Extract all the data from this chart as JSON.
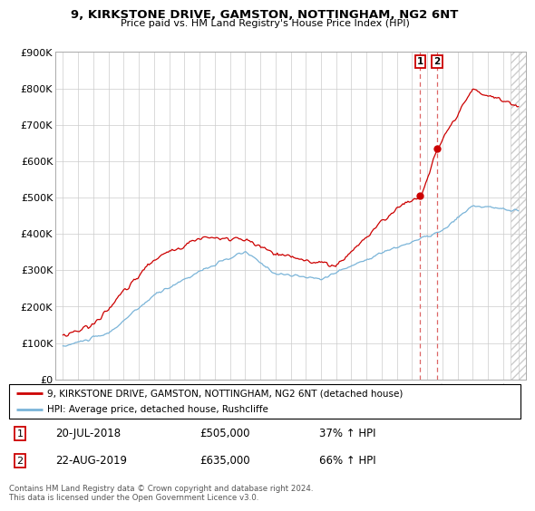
{
  "title": "9, KIRKSTONE DRIVE, GAMSTON, NOTTINGHAM, NG2 6NT",
  "subtitle": "Price paid vs. HM Land Registry's House Price Index (HPI)",
  "ylim": [
    0,
    900000
  ],
  "yticks": [
    0,
    100000,
    200000,
    300000,
    400000,
    500000,
    600000,
    700000,
    800000,
    900000
  ],
  "ytick_labels": [
    "£0",
    "£100K",
    "£200K",
    "£300K",
    "£400K",
    "£500K",
    "£600K",
    "£700K",
    "£800K",
    "£900K"
  ],
  "hpi_color": "#7ab4d8",
  "price_color": "#cc0000",
  "sale_1_date": 2018.54,
  "sale_1_price": 505000,
  "sale_2_date": 2019.64,
  "sale_2_price": 635000,
  "vline_color": "#dd6666",
  "legend_label_red": "9, KIRKSTONE DRIVE, GAMSTON, NOTTINGHAM, NG2 6NT (detached house)",
  "legend_label_blue": "HPI: Average price, detached house, Rushcliffe",
  "table_row1": [
    "1",
    "20-JUL-2018",
    "£505,000",
    "37% ↑ HPI"
  ],
  "table_row2": [
    "2",
    "22-AUG-2019",
    "£635,000",
    "66% ↑ HPI"
  ],
  "footnote": "Contains HM Land Registry data © Crown copyright and database right 2024.\nThis data is licensed under the Open Government Licence v3.0.",
  "grid_color": "#cccccc",
  "hatch_color": "#cccccc"
}
